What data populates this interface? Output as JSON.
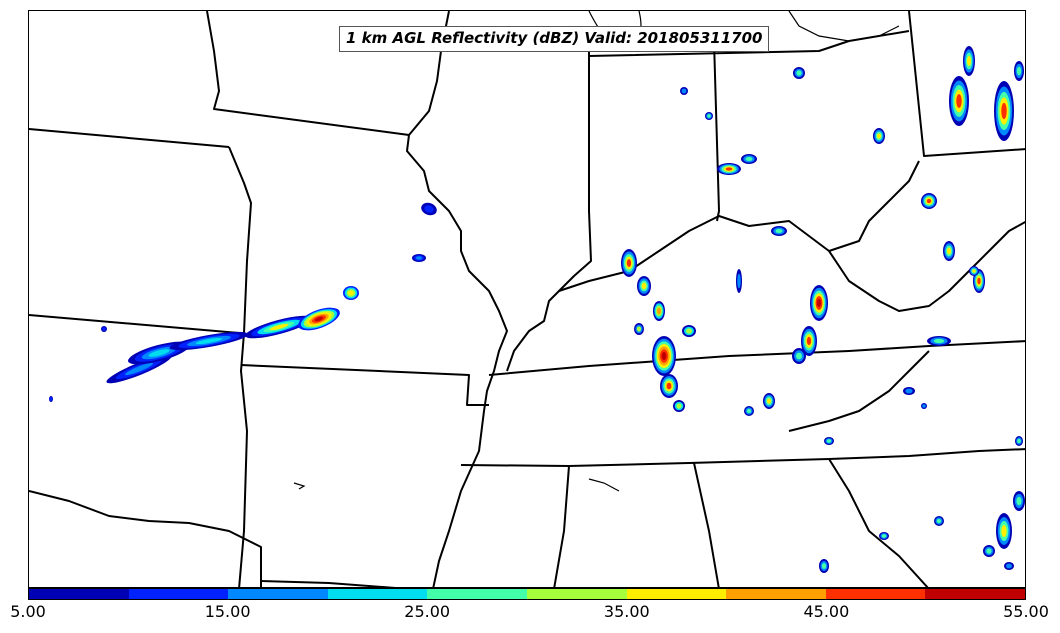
{
  "map": {
    "title": "1 km AGL Reflectivity (dBZ) Valid: 201805311700",
    "layers": [
      "state-boundaries",
      "coastline",
      "lakes",
      "reflectivity"
    ]
  },
  "colorbar": {
    "colors": [
      "#0000b4",
      "#0022ff",
      "#0088ff",
      "#00ddee",
      "#44ffaa",
      "#a6ff3c",
      "#ffee00",
      "#ffa000",
      "#ff3000",
      "#c00000"
    ],
    "ticks": [
      "5.00",
      "15.00",
      "25.00",
      "35.00",
      "45.00",
      "55.00"
    ],
    "range": [
      5,
      55
    ],
    "units": "dBZ"
  },
  "palette": {
    "boundary": "#000000",
    "background": "#ffffff"
  }
}
